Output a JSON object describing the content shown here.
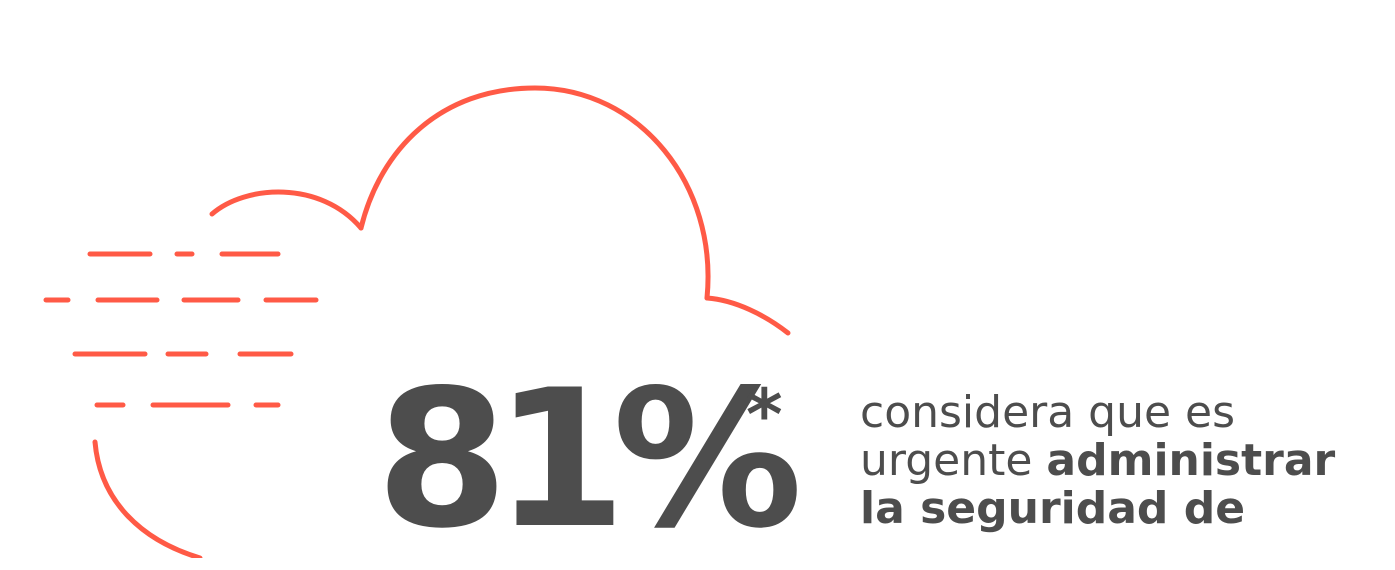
{
  "stat": {
    "value": "81%",
    "footnote_mark": "*"
  },
  "caption": {
    "line1": "considera que es",
    "line2_plain": "urgente ",
    "line2_bold": "administrar",
    "line3_bold": "la seguridad de"
  },
  "icons": {
    "cloud": "cloud-outline-icon",
    "speed_lines": "speed-lines-icon"
  },
  "colors": {
    "accent": "#ff5a46",
    "text": "#4d4d4d",
    "background": "#ffffff"
  }
}
